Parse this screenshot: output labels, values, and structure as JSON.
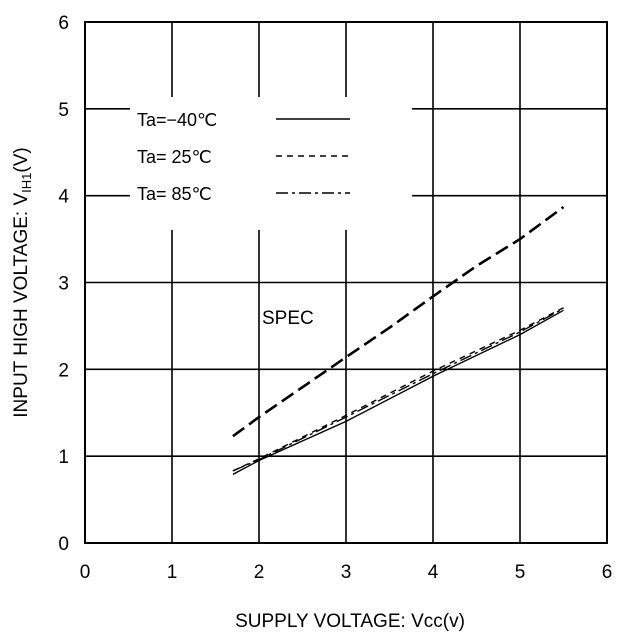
{
  "chart_data": {
    "type": "line",
    "title": "",
    "xlabel": "SUPPLY VOLTAGE: Vcc(v)",
    "ylabel": "INPUT HIGH VOLTAGE: V",
    "ylabel_sub": "IH1",
    "ylabel_suffix": "(V)",
    "xlim": [
      0,
      6
    ],
    "ylim": [
      0,
      6
    ],
    "xticks": [
      "0",
      "1",
      "2",
      "3",
      "4",
      "5",
      "6"
    ],
    "yticks": [
      "0",
      "1",
      "2",
      "3",
      "4",
      "5",
      "6"
    ],
    "grid": true,
    "legend_position": "top-left",
    "series": [
      {
        "name": "Ta=−40℃",
        "style": "solid",
        "points": [
          [
            1.7,
            0.79
          ],
          [
            2.0,
            0.95
          ],
          [
            3.0,
            1.4
          ],
          [
            4.0,
            1.92
          ],
          [
            5.0,
            2.4
          ],
          [
            5.5,
            2.68
          ]
        ]
      },
      {
        "name": "Ta= 25℃",
        "style": "dashed",
        "points": [
          [
            1.7,
            0.83
          ],
          [
            2.0,
            0.97
          ],
          [
            3.0,
            1.47
          ],
          [
            4.0,
            1.98
          ],
          [
            5.0,
            2.45
          ],
          [
            5.5,
            2.71
          ]
        ]
      },
      {
        "name": "Ta= 85℃",
        "style": "dashdot",
        "points": [
          [
            1.7,
            0.83
          ],
          [
            2.0,
            0.96
          ],
          [
            3.0,
            1.45
          ],
          [
            4.0,
            1.95
          ],
          [
            5.0,
            2.43
          ],
          [
            5.5,
            2.7
          ]
        ]
      }
    ],
    "spec_line": {
      "style": "longdash",
      "points": [
        [
          1.7,
          1.23
        ],
        [
          2.0,
          1.45
        ],
        [
          3.0,
          2.14
        ],
        [
          3.5,
          2.48
        ],
        [
          4.0,
          2.84
        ],
        [
          4.5,
          3.19
        ],
        [
          5.0,
          3.5
        ],
        [
          5.5,
          3.87
        ]
      ]
    },
    "annotations": [
      {
        "text": "SPEC",
        "x": 2.0,
        "y": 2.6
      }
    ]
  }
}
